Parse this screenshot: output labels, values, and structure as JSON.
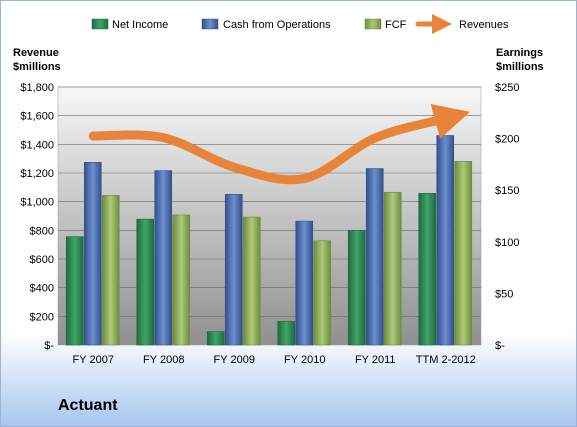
{
  "company": "Actuant",
  "colors": {
    "net_income": "#2e8b57",
    "cash_from_operations": "#4f6fb0",
    "fcf": "#8fb05a",
    "revenues": "#e8833a"
  },
  "chart_data": {
    "type": "bar",
    "categories": [
      "FY 2007",
      "FY 2008",
      "FY 2009",
      "FY 2010",
      "FY 2011",
      "TTM 2-2012"
    ],
    "series": [
      {
        "name": "Net Income",
        "axis": "right",
        "values": [
          105,
          122,
          13,
          23,
          111,
          147
        ]
      },
      {
        "name": "Cash from Operations",
        "axis": "right",
        "values": [
          177,
          169,
          146,
          120,
          171,
          203
        ]
      },
      {
        "name": "FCF",
        "axis": "right",
        "values": [
          145,
          126,
          124,
          101,
          148,
          178
        ]
      },
      {
        "name": "Revenues",
        "axis": "left",
        "type": "line",
        "values": [
          1458,
          1446,
          1240,
          1162,
          1445,
          1580
        ]
      }
    ],
    "left_axis": {
      "title_line1": "Revenue",
      "title_line2": "$millions",
      "ylim": [
        0,
        1800
      ],
      "ticks": [
        "$-",
        "$200",
        "$400",
        "$600",
        "$800",
        "$1,000",
        "$1,200",
        "$1,400",
        "$1,600",
        "$1,800"
      ]
    },
    "right_axis": {
      "title_line1": "Earnings",
      "title_line2": "$millions",
      "ylim": [
        0,
        250
      ],
      "ticks": [
        "$-",
        "$50",
        "$100",
        "$150",
        "$200",
        "$250"
      ]
    },
    "grid": true,
    "legend_position": "top"
  }
}
